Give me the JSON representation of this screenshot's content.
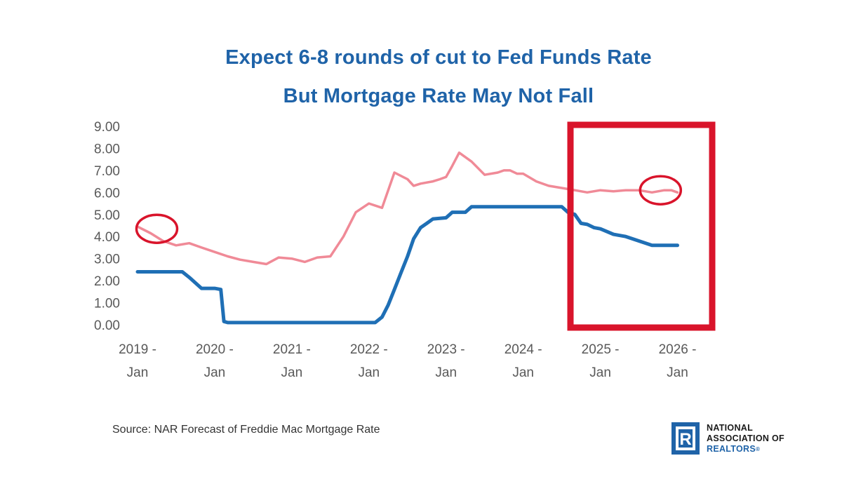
{
  "title": {
    "line1": "Expect 6-8 rounds of cut to Fed Funds Rate",
    "line2": "But Mortgage Rate May Not Fall"
  },
  "source": "Source: NAR Forecast of Freddie Mac Mortgage Rate",
  "logo": {
    "line1": "NATIONAL",
    "line2": "ASSOCIATION OF",
    "line3": "REALTORS",
    "mark": "R",
    "registered": "®"
  },
  "colors": {
    "title": "#1f63a8",
    "fed_funds": "#1f6fb5",
    "mortgage": "#f08a97",
    "highlight": "#d9142b",
    "axis_text": "#595959"
  },
  "chart_data": {
    "type": "line",
    "title": "Expect 6-8 rounds of cut to Fed Funds Rate / But Mortgage Rate May Not Fall",
    "xlabel": "",
    "ylabel": "",
    "ylim": [
      0,
      9
    ],
    "yticks": [
      "0.00",
      "1.00",
      "2.00",
      "3.00",
      "4.00",
      "5.00",
      "6.00",
      "7.00",
      "8.00",
      "9.00"
    ],
    "xticks": [
      {
        "x": 2019,
        "line1": "2019 -",
        "line2": "Jan"
      },
      {
        "x": 2020,
        "line1": "2020 -",
        "line2": "Jan"
      },
      {
        "x": 2021,
        "line1": "2021 -",
        "line2": "Jan"
      },
      {
        "x": 2022,
        "line1": "2022 -",
        "line2": "Jan"
      },
      {
        "x": 2023,
        "line1": "2023 -",
        "line2": "Jan"
      },
      {
        "x": 2024,
        "line1": "2024 -",
        "line2": "Jan"
      },
      {
        "x": 2025,
        "line1": "2025 -",
        "line2": "Jan"
      },
      {
        "x": 2026,
        "line1": "2026 -",
        "line2": "Jan"
      }
    ],
    "xlim": [
      2019,
      2026.2
    ],
    "grid": false,
    "legend": "none",
    "series": [
      {
        "color": "#f08a97",
        "x": [
          2019.0,
          2019.17,
          2019.33,
          2019.5,
          2019.67,
          2019.83,
          2020.0,
          2020.17,
          2020.33,
          2020.5,
          2020.67,
          2020.83,
          2021.0,
          2021.17,
          2021.33,
          2021.5,
          2021.67,
          2021.83,
          2022.0,
          2022.17,
          2022.33,
          2022.5,
          2022.58,
          2022.67,
          2022.75,
          2022.83,
          2022.92,
          2023.0,
          2023.08,
          2023.17,
          2023.33,
          2023.5,
          2023.67,
          2023.75,
          2023.83,
          2023.92,
          2024.0,
          2024.17,
          2024.33,
          2024.5,
          2024.67,
          2024.83,
          2025.0,
          2025.17,
          2025.33,
          2025.5,
          2025.67,
          2025.83,
          2025.92,
          2026.0
        ],
        "values": [
          4.45,
          4.15,
          3.8,
          3.6,
          3.7,
          3.5,
          3.3,
          3.1,
          2.95,
          2.85,
          2.75,
          3.05,
          3.0,
          2.85,
          3.05,
          3.1,
          4.0,
          5.1,
          5.5,
          5.3,
          6.9,
          6.6,
          6.3,
          6.4,
          6.45,
          6.5,
          6.6,
          6.7,
          7.2,
          7.8,
          7.4,
          6.8,
          6.9,
          7.0,
          7.0,
          6.85,
          6.85,
          6.5,
          6.3,
          6.2,
          6.1,
          6.0,
          6.1,
          6.05,
          6.1,
          6.1,
          6.0,
          6.1,
          6.1,
          6.0
        ]
      },
      {
        "color": "#1f6fb5",
        "x": [
          2019.0,
          2019.58,
          2019.67,
          2019.83,
          2020.0,
          2020.08,
          2020.12,
          2020.17,
          2021.0,
          2022.08,
          2022.17,
          2022.25,
          2022.33,
          2022.42,
          2022.5,
          2022.58,
          2022.67,
          2022.75,
          2022.83,
          2023.0,
          2023.08,
          2023.25,
          2023.33,
          2023.5,
          2023.58,
          2024.0,
          2024.5,
          2024.58,
          2024.67,
          2024.75,
          2024.83,
          2024.92,
          2025.0,
          2025.17,
          2025.33,
          2025.5,
          2025.67,
          2025.83,
          2026.0
        ],
        "values": [
          2.4,
          2.4,
          2.15,
          1.65,
          1.65,
          1.6,
          0.15,
          0.1,
          0.1,
          0.1,
          0.35,
          0.9,
          1.6,
          2.4,
          3.1,
          3.9,
          4.4,
          4.6,
          4.8,
          4.85,
          5.1,
          5.1,
          5.35,
          5.35,
          5.35,
          5.35,
          5.35,
          5.1,
          5.0,
          4.6,
          4.55,
          4.4,
          4.35,
          4.1,
          4.0,
          3.8,
          3.6,
          3.6,
          3.6
        ]
      }
    ],
    "annotations": [
      {
        "type": "circle",
        "x": 2019.25,
        "y": 4.35
      },
      {
        "type": "circle",
        "x": 2025.78,
        "y": 6.1
      },
      {
        "type": "rect",
        "x0": 2024.55,
        "x1": 2025.8,
        "y0": -0.1,
        "y1": 9.0
      }
    ]
  }
}
